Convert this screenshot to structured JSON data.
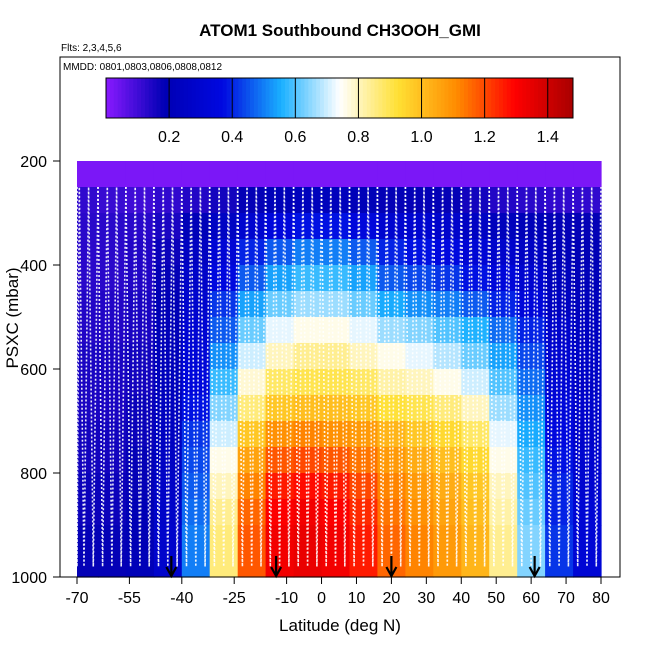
{
  "chart_data": {
    "type": "heatmap",
    "title": "ATOM1 Southbound CH3OOH_GMI",
    "subtitle": "Flts: 2,3,4,5,6",
    "annotation": "MMDD: 0801,0803,0806,0808,0812",
    "xlabel": "Latitude (deg N)",
    "ylabel": "PSXC (mbar)",
    "xlim": [
      -70,
      85
    ],
    "ylim": [
      1000,
      0
    ],
    "x_ticks": [
      -70,
      -55,
      -40,
      -25,
      -10,
      0,
      10,
      20,
      30,
      40,
      50,
      60,
      70,
      80
    ],
    "x_tick_labels": [
      "-70",
      "-55",
      "-40",
      "-25",
      "-10",
      "0",
      "10",
      "20",
      "30",
      "40",
      "50",
      "60",
      "70",
      "80"
    ],
    "y_ticks": [
      200,
      400,
      600,
      800,
      1000
    ],
    "y_tick_labels": [
      "200",
      "400",
      "600",
      "800",
      "1000"
    ],
    "colorbar": {
      "range": [
        0,
        1.48
      ],
      "ticks": [
        0.2,
        0.4,
        0.6,
        0.8,
        1.0,
        1.2,
        1.4
      ],
      "tick_labels": [
        "0.2",
        "0.4",
        "0.6",
        "0.8",
        "1.0",
        "1.2",
        "1.4"
      ],
      "colors": [
        "#8a1aff",
        "#0000b4",
        "#0008e0",
        "#1ab0ff",
        "#ffffff",
        "#ffe034",
        "#ff8c00",
        "#ff0000",
        "#a80000"
      ]
    },
    "field_latitudes": [
      -68,
      -60,
      -52,
      -44,
      -36,
      -28,
      -20,
      -12,
      -4,
      4,
      12,
      20,
      28,
      36,
      44,
      52,
      60,
      68,
      76
    ],
    "field_pressures": [
      225,
      275,
      325,
      375,
      425,
      475,
      525,
      575,
      625,
      675,
      725,
      775,
      825,
      875,
      925,
      975
    ],
    "field_values": [
      [
        0.02,
        0.02,
        0.02,
        0.02,
        0.02,
        0.02,
        0.02,
        0.02,
        0.02,
        0.02,
        0.02,
        0.02,
        0.02,
        0.02,
        0.02,
        0.02,
        0.02,
        0.02,
        0.02
      ],
      [
        0.12,
        0.11,
        0.1,
        0.12,
        0.14,
        0.16,
        0.18,
        0.2,
        0.22,
        0.22,
        0.2,
        0.18,
        0.18,
        0.18,
        0.16,
        0.14,
        0.13,
        0.12,
        0.12
      ],
      [
        0.13,
        0.13,
        0.13,
        0.15,
        0.2,
        0.25,
        0.3,
        0.35,
        0.38,
        0.38,
        0.35,
        0.3,
        0.3,
        0.28,
        0.25,
        0.22,
        0.2,
        0.18,
        0.18
      ],
      [
        0.13,
        0.13,
        0.14,
        0.17,
        0.24,
        0.32,
        0.4,
        0.46,
        0.5,
        0.5,
        0.46,
        0.4,
        0.38,
        0.36,
        0.32,
        0.28,
        0.25,
        0.2,
        0.19
      ],
      [
        0.13,
        0.13,
        0.14,
        0.18,
        0.27,
        0.36,
        0.46,
        0.54,
        0.58,
        0.58,
        0.54,
        0.46,
        0.44,
        0.42,
        0.38,
        0.34,
        0.3,
        0.22,
        0.2
      ],
      [
        0.14,
        0.14,
        0.15,
        0.19,
        0.29,
        0.42,
        0.54,
        0.62,
        0.66,
        0.66,
        0.62,
        0.55,
        0.52,
        0.5,
        0.46,
        0.4,
        0.34,
        0.24,
        0.22
      ],
      [
        0.14,
        0.14,
        0.15,
        0.2,
        0.31,
        0.46,
        0.62,
        0.72,
        0.76,
        0.76,
        0.72,
        0.66,
        0.64,
        0.6,
        0.56,
        0.48,
        0.4,
        0.28,
        0.24
      ],
      [
        0.15,
        0.15,
        0.16,
        0.21,
        0.33,
        0.52,
        0.7,
        0.8,
        0.84,
        0.84,
        0.8,
        0.76,
        0.72,
        0.68,
        0.62,
        0.54,
        0.44,
        0.3,
        0.26
      ],
      [
        0.15,
        0.15,
        0.16,
        0.22,
        0.35,
        0.58,
        0.78,
        0.88,
        0.9,
        0.9,
        0.88,
        0.82,
        0.8,
        0.76,
        0.7,
        0.6,
        0.48,
        0.32,
        0.26
      ],
      [
        0.15,
        0.15,
        0.17,
        0.23,
        0.38,
        0.64,
        0.86,
        0.98,
        1.0,
        1.0,
        0.98,
        0.92,
        0.9,
        0.86,
        0.8,
        0.66,
        0.52,
        0.34,
        0.28
      ],
      [
        0.16,
        0.16,
        0.17,
        0.24,
        0.42,
        0.7,
        0.98,
        1.1,
        1.12,
        1.1,
        1.08,
        1.02,
        0.98,
        0.94,
        0.88,
        0.72,
        0.55,
        0.36,
        0.28
      ],
      [
        0.16,
        0.16,
        0.18,
        0.25,
        0.44,
        0.76,
        1.06,
        1.18,
        1.2,
        1.18,
        1.14,
        1.08,
        1.04,
        1.0,
        0.94,
        0.76,
        0.58,
        0.38,
        0.3
      ],
      [
        0.17,
        0.17,
        0.18,
        0.26,
        0.46,
        0.8,
        1.12,
        1.26,
        1.28,
        1.26,
        1.2,
        1.12,
        1.08,
        1.04,
        0.98,
        0.8,
        0.6,
        0.4,
        0.3
      ],
      [
        0.17,
        0.17,
        0.19,
        0.27,
        0.48,
        0.84,
        1.16,
        1.3,
        1.32,
        1.3,
        1.24,
        1.14,
        1.1,
        1.06,
        1.0,
        0.82,
        0.62,
        0.4,
        0.32
      ],
      [
        0.18,
        0.18,
        0.19,
        0.28,
        0.5,
        0.86,
        1.18,
        1.32,
        1.34,
        1.32,
        1.26,
        1.16,
        1.12,
        1.08,
        1.02,
        0.84,
        0.64,
        0.42,
        0.32
      ],
      [
        0.18,
        0.18,
        0.2,
        0.28,
        0.5,
        0.86,
        1.18,
        1.32,
        1.34,
        1.32,
        1.26,
        1.16,
        1.12,
        1.08,
        1.02,
        0.84,
        0.64,
        0.42,
        0.32
      ]
    ],
    "arrow_markers_lat": [
      -43,
      -13,
      20,
      61
    ]
  }
}
